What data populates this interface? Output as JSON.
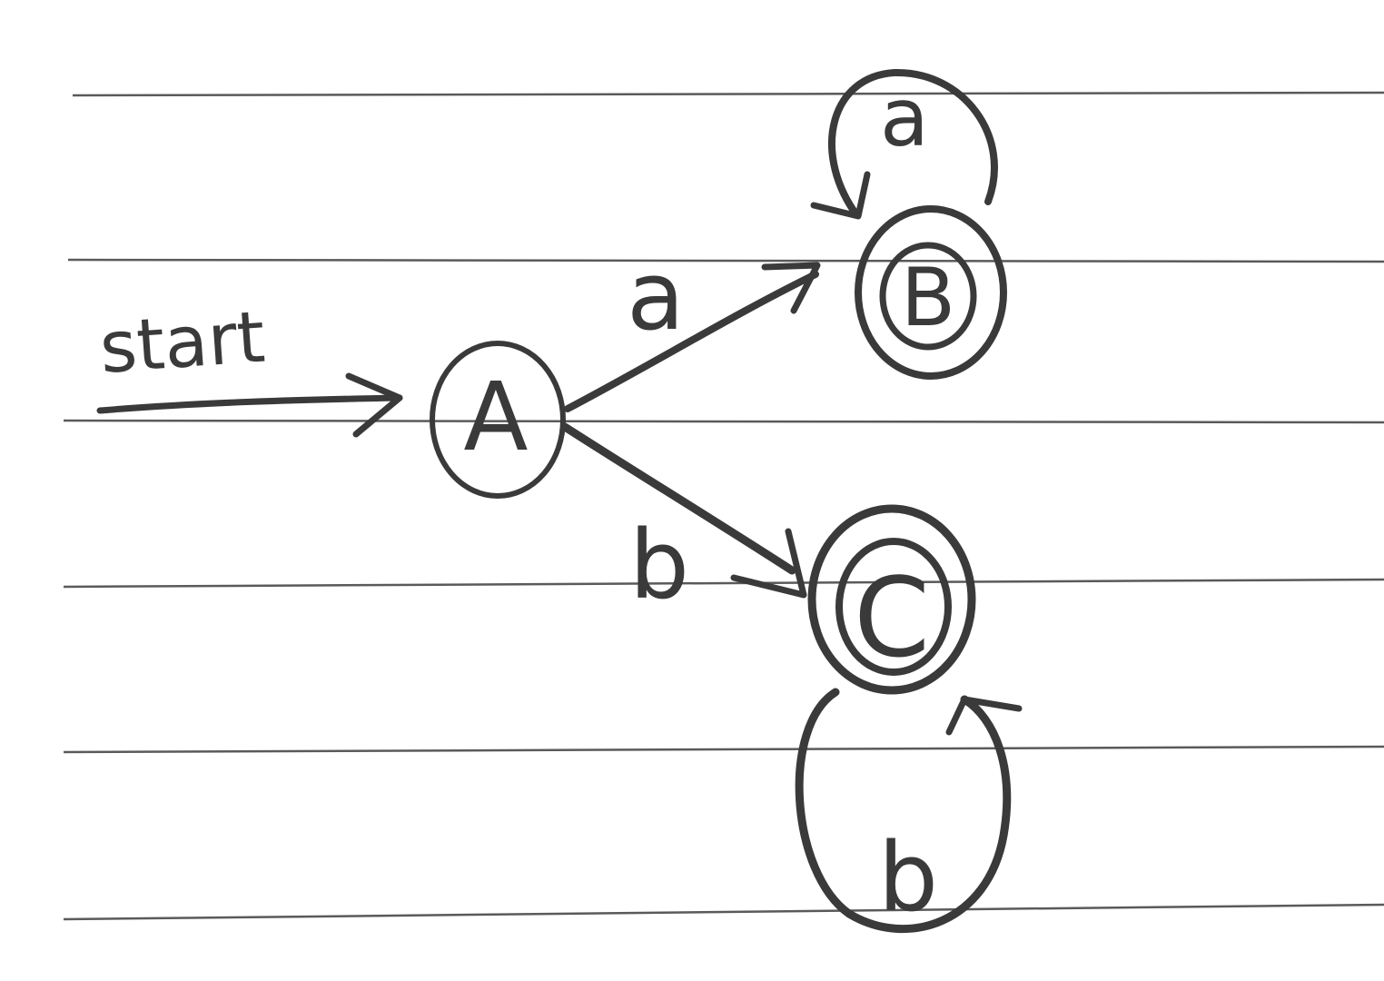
{
  "diagram": {
    "start_label": "start",
    "states": [
      {
        "id": "A",
        "label": "A",
        "accepting": false,
        "initial": true
      },
      {
        "id": "B",
        "label": "B",
        "accepting": true,
        "initial": false
      },
      {
        "id": "C",
        "label": "C",
        "accepting": true,
        "initial": false
      }
    ],
    "transitions": [
      {
        "from": "A",
        "to": "B",
        "label": "a"
      },
      {
        "from": "A",
        "to": "C",
        "label": "b"
      },
      {
        "from": "B",
        "to": "B",
        "label": "a"
      },
      {
        "from": "C",
        "to": "C",
        "label": "b"
      }
    ]
  },
  "colors": {
    "ink": "#3a3a3a",
    "paper": "#ffffff",
    "rule": "#5a5a5a"
  }
}
